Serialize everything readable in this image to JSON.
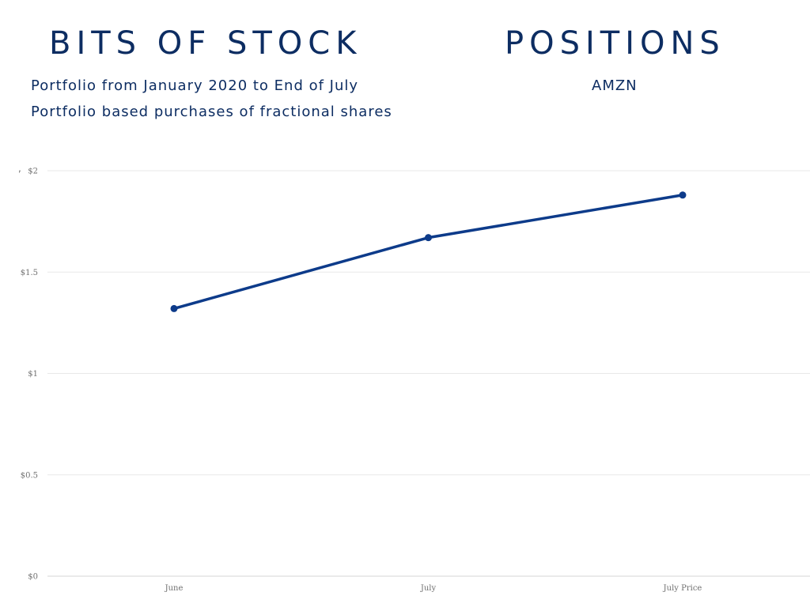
{
  "header": {
    "left_title": "BITS OF STOCK",
    "right_title": "POSITIONS",
    "subtitle_line1": "Portfolio from January 2020 to End of July",
    "subtitle_line2": "Portfolio based purchases of fractional shares",
    "ticker": "AMZN"
  },
  "stray_mark": ",",
  "colors": {
    "title": "#0d2d62",
    "series_line": "#0d3b8a",
    "grid": "#e8e8e8",
    "axis": "#d5d5d5",
    "tick_text": "#707070"
  },
  "chart_data": {
    "type": "line",
    "title": "",
    "xlabel": "",
    "ylabel": "",
    "categories": [
      "June",
      "July",
      "July Price"
    ],
    "series": [
      {
        "name": "AMZN",
        "values": [
          1.32,
          1.67,
          1.88
        ]
      }
    ],
    "ylim": [
      0,
      2
    ],
    "y_ticks": [
      0,
      0.5,
      1,
      1.5,
      2
    ],
    "y_tick_labels": [
      "$0",
      "$0.5",
      "$1",
      "$1.5",
      "$2"
    ],
    "grid": true,
    "legend": "none"
  }
}
